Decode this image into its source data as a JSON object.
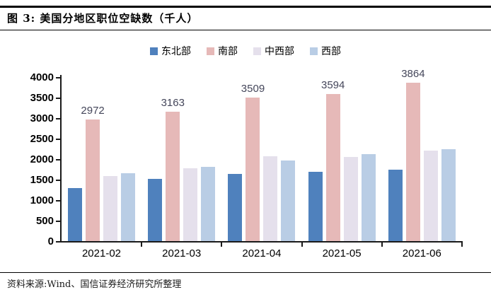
{
  "header": {
    "title": "图 3: 美国分地区职位空缺数（千人）"
  },
  "source": {
    "text": "资料来源:Wind、国信证券经济研究所整理"
  },
  "colors": {
    "axis": "#1a1a1a",
    "data_label": "#44465A",
    "northeast": "#4F81BD",
    "south": "#E6B9B8",
    "midwest": "#E5E0EC",
    "west": "#B9CDE5"
  },
  "chart_data": {
    "type": "bar",
    "title": "美国分地区职位空缺数（千人）",
    "categories": [
      "2021-02",
      "2021-03",
      "2021-04",
      "2021-05",
      "2021-06"
    ],
    "series": [
      {
        "name": "东北部",
        "color": "#4F81BD",
        "values": [
          1300,
          1520,
          1640,
          1690,
          1750
        ],
        "data_labels": false
      },
      {
        "name": "南部",
        "color": "#E6B9B8",
        "values": [
          2972,
          3163,
          3509,
          3594,
          3864
        ],
        "data_labels": true
      },
      {
        "name": "中西部",
        "color": "#E5E0EC",
        "values": [
          1580,
          1780,
          2070,
          2050,
          2200
        ],
        "data_labels": false
      },
      {
        "name": "西部",
        "color": "#B9CDE5",
        "values": [
          1660,
          1810,
          1960,
          2130,
          2240
        ],
        "data_labels": false
      }
    ],
    "labeled_values": [
      2972,
      3163,
      3509,
      3594,
      3864
    ],
    "xlabel": "",
    "ylabel": "",
    "ylim": [
      0,
      4000
    ],
    "ytick_step": 500,
    "grid": false,
    "legend_position": "top-center"
  }
}
